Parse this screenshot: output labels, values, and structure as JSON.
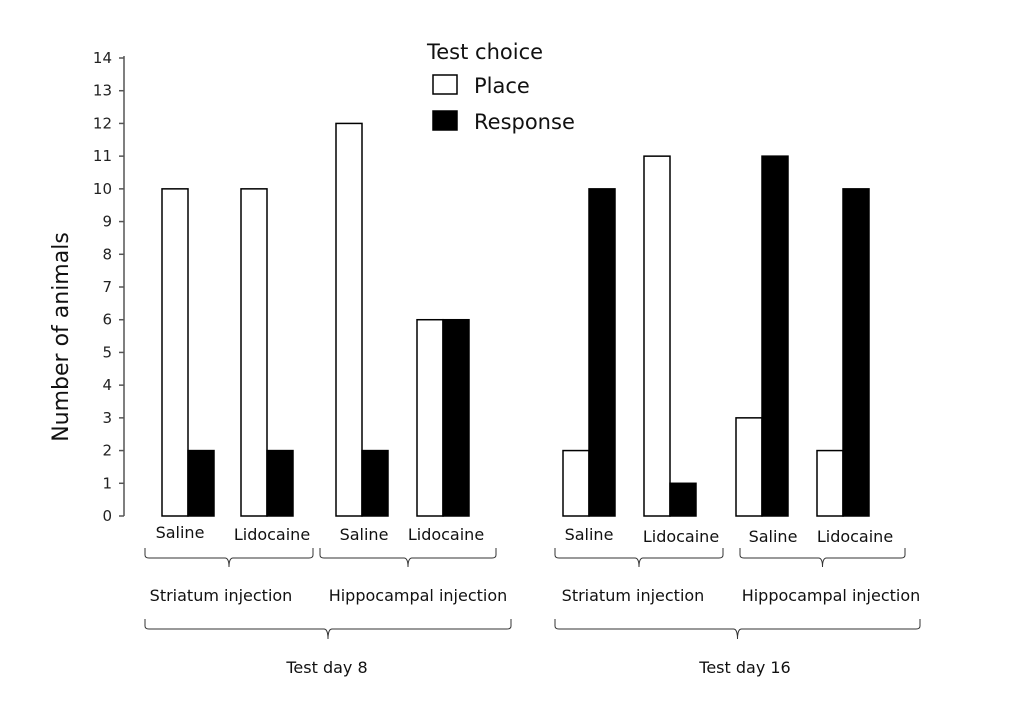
{
  "chart_data": {
    "type": "bar",
    "ylabel": "Number of animals",
    "ylim": [
      0,
      14
    ],
    "yticks": [
      "0",
      "1",
      "2",
      "3",
      "4",
      "5",
      "6",
      "7",
      "8",
      "9",
      "10",
      "11",
      "12",
      "13",
      "14"
    ],
    "legend_title": "Test choice",
    "legend_position": "top-center",
    "series": [
      {
        "name": "Place",
        "color": "#ffffff",
        "values": [
          10,
          10,
          12,
          6,
          2,
          11,
          3,
          2
        ]
      },
      {
        "name": "Response",
        "color": "#000000",
        "values": [
          2,
          2,
          2,
          6,
          10,
          1,
          11,
          10
        ]
      }
    ],
    "categories": [
      "Saline",
      "Lidocaine",
      "Saline",
      "Lidocaine",
      "Saline",
      "Lidocaine",
      "Saline",
      "Lidocaine"
    ],
    "injection_groups": [
      "Striatum injection",
      "Hippocampal injection",
      "Striatum injection",
      "Hippocampal injection"
    ],
    "day_groups": [
      "Test day 8",
      "Test day 16"
    ],
    "grid": false
  }
}
